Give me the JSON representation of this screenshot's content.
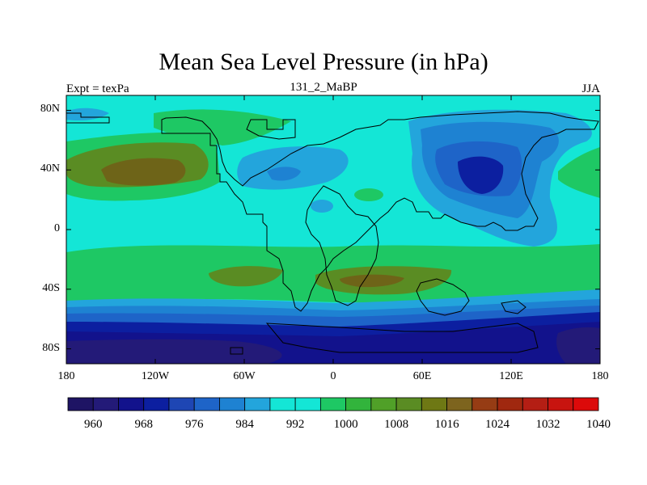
{
  "title": "Mean Sea Level Pressure (in hPa)",
  "subtitle_left": "Expt = texPa",
  "subtitle_center": "131_2_MaBP",
  "subtitle_right": "JJA",
  "map": {
    "lon_range": [
      -180,
      180
    ],
    "lat_range": [
      -90,
      90
    ],
    "x_ticks": [
      {
        "lon": -180,
        "label": "180"
      },
      {
        "lon": -120,
        "label": "120W"
      },
      {
        "lon": -60,
        "label": "60W"
      },
      {
        "lon": 0,
        "label": "0"
      },
      {
        "lon": 60,
        "label": "60E"
      },
      {
        "lon": 120,
        "label": "120E"
      },
      {
        "lon": 180,
        "label": "180"
      }
    ],
    "y_ticks": [
      {
        "lat": 80,
        "label": "80N"
      },
      {
        "lat": 40,
        "label": "40N"
      },
      {
        "lat": 0,
        "label": "0"
      },
      {
        "lat": -40,
        "label": "40S"
      },
      {
        "lat": -80,
        "label": "80S"
      }
    ],
    "background_color": "#14e6d6"
  },
  "colorbar": {
    "colors": [
      "#1e1464",
      "#231a78",
      "#12128c",
      "#0c1fa0",
      "#1e46b4",
      "#1e64c8",
      "#1e82d2",
      "#23a5dc",
      "#14e6d6",
      "#14e6d6",
      "#1ec864",
      "#32b43c",
      "#50a028",
      "#5a8c23",
      "#6e7814",
      "#7d641e",
      "#963c14",
      "#a0280f",
      "#b41e14",
      "#c8140f",
      "#dc0a0a"
    ],
    "labels": [
      {
        "label": "960",
        "index": 1
      },
      {
        "label": "968",
        "index": 3
      },
      {
        "label": "976",
        "index": 5
      },
      {
        "label": "984",
        "index": 7
      },
      {
        "label": "992",
        "index": 9
      },
      {
        "label": "1000",
        "index": 11
      },
      {
        "label": "1008",
        "index": 13
      },
      {
        "label": "1016",
        "index": 15
      },
      {
        "label": "1024",
        "index": 17
      },
      {
        "label": "1032",
        "index": 19
      },
      {
        "label": "1040",
        "index": 21
      }
    ]
  }
}
